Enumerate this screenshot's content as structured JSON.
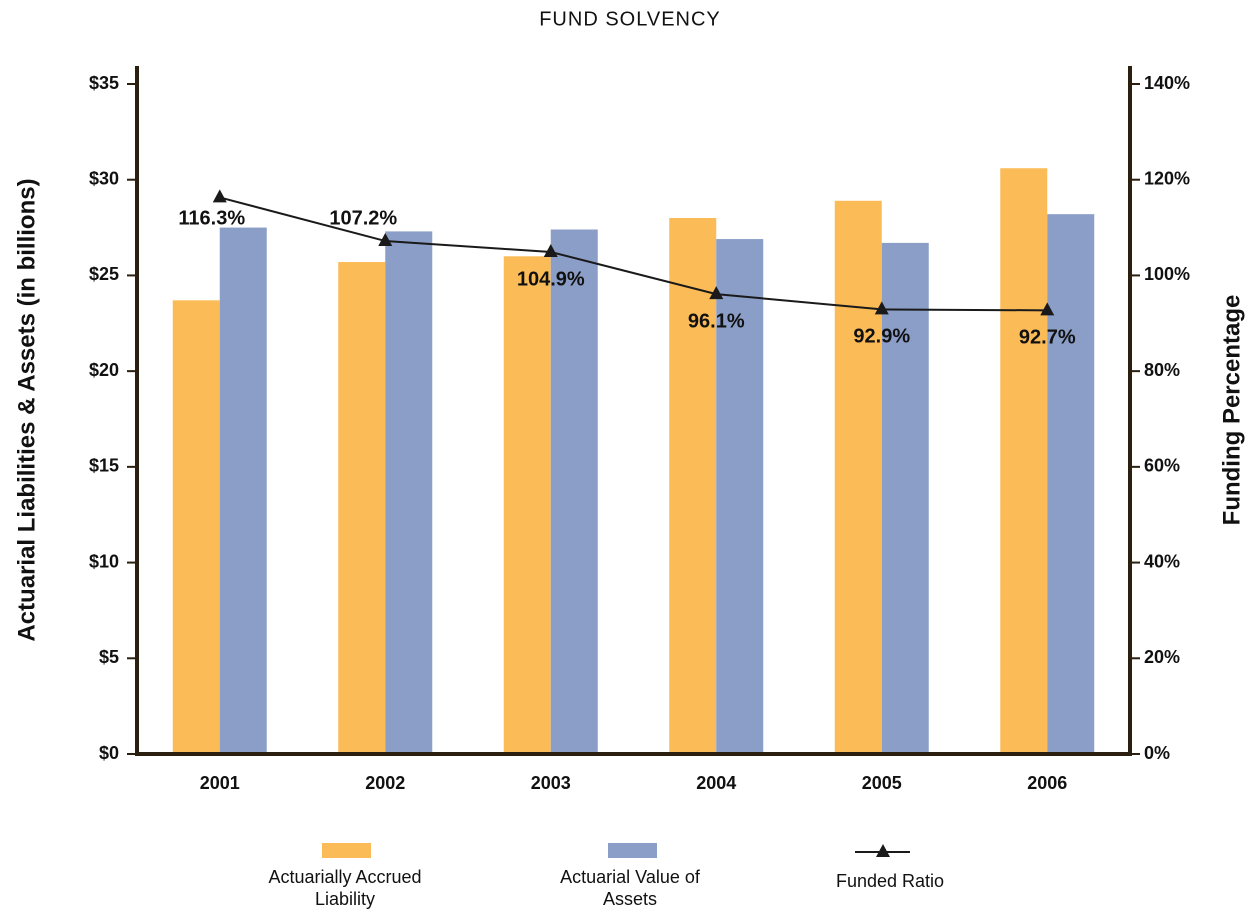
{
  "chart_data": {
    "type": "bar",
    "title": "FUND SOLVENCY",
    "y_label": "Actuarial Liabilities & Assets  (in billions)",
    "y2_label": "Funding Percentage",
    "categories": [
      "2001",
      "2002",
      "2003",
      "2004",
      "2005",
      "2006"
    ],
    "series": [
      {
        "name": "Actuarially Accrued Liability",
        "color": "#fbbc58",
        "values": [
          23.7,
          25.7,
          26.0,
          28.0,
          28.9,
          30.6
        ]
      },
      {
        "name": "Actuarial Value of Assets",
        "color": "#8a9ec8",
        "values": [
          27.5,
          27.3,
          27.4,
          26.9,
          26.7,
          28.2
        ]
      },
      {
        "name": "Funded Ratio",
        "type": "line",
        "axis": "y2",
        "color": "#1a1a1a",
        "values": [
          116.3,
          107.2,
          104.9,
          96.1,
          92.9,
          92.7
        ],
        "value_labels": [
          "116.3%",
          "107.2%",
          "104.9%",
          "96.1%",
          "92.9%",
          "92.7%"
        ]
      }
    ],
    "ylim": [
      0,
      35
    ],
    "yticks": [
      {
        "value": 0,
        "label": "$0"
      },
      {
        "value": 5,
        "label": "$5"
      },
      {
        "value": 10,
        "label": "$10"
      },
      {
        "value": 15,
        "label": "$15"
      },
      {
        "value": 20,
        "label": "$20"
      },
      {
        "value": 25,
        "label": "$25"
      },
      {
        "value": 30,
        "label": "$30"
      },
      {
        "value": 35,
        "label": "$35"
      }
    ],
    "y2lim": [
      0,
      140
    ],
    "y2ticks": [
      {
        "value": 0,
        "label": "0%"
      },
      {
        "value": 20,
        "label": "20%"
      },
      {
        "value": 40,
        "label": "40%"
      },
      {
        "value": 60,
        "label": "60%"
      },
      {
        "value": 80,
        "label": "80%"
      },
      {
        "value": 100,
        "label": "100%"
      },
      {
        "value": 120,
        "label": "120%"
      },
      {
        "value": 140,
        "label": "140%"
      }
    ],
    "grid": false,
    "legend": "bottom"
  }
}
